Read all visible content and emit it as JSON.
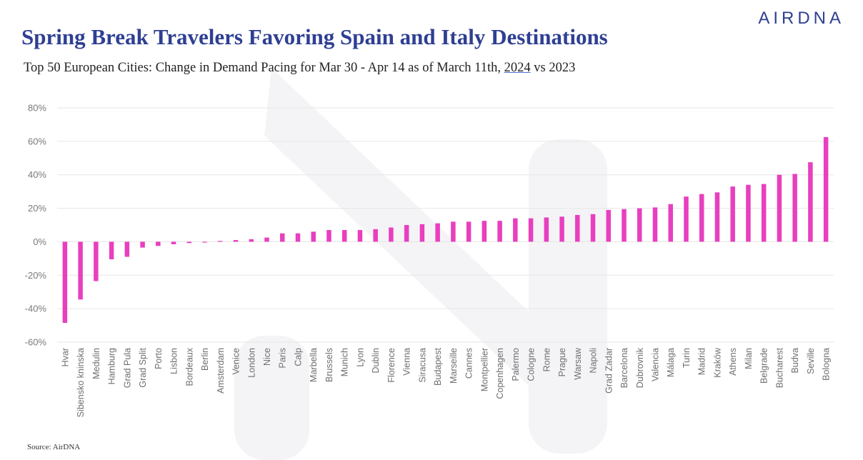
{
  "header": {
    "title": "Spring Break Travelers Favoring Spain and Italy Destinations",
    "subtitle_before": "Top 50 European Cities: Change in Demand Pacing for Mar 30 - Apr 14 as of March 11th, ",
    "subtitle_underlined": "2024",
    "subtitle_after": " vs 2023",
    "logo": "AIRDNA"
  },
  "footer": {
    "source": "Source: AirDNA"
  },
  "colors": {
    "bar": "#e83fbf",
    "title": "#2e3f93",
    "grid": "#e6e6e6"
  },
  "chart_data": {
    "type": "bar",
    "categories": [
      "Hvar",
      "Sibensko kninska",
      "Medulin",
      "Hamburg",
      "Grad Pula",
      "Grad Split",
      "Porto",
      "Lisbon",
      "Bordeaux",
      "Berlin",
      "Amsterdam",
      "Venice",
      "London",
      "Nice",
      "Paris",
      "Calp",
      "Marbella",
      "Brussels",
      "Munich",
      "Lyon",
      "Dublin",
      "Florence",
      "Vienna",
      "Siracusa",
      "Budapest",
      "Marseille",
      "Cannes",
      "Montpellier",
      "Copenhagen",
      "Palermo",
      "Cologne",
      "Rome",
      "Prague",
      "Warsaw",
      "Napoli",
      "Grad Zadar",
      "Barcelona",
      "Dubrovnik",
      "Valencia",
      "Málaga",
      "Turin",
      "Madrid",
      "Kraków",
      "Athens",
      "Milan",
      "Belgrade",
      "Bucharest",
      "Budva",
      "Seville",
      "Bologna"
    ],
    "values": [
      -48.5,
      -34.5,
      -23.5,
      -10.5,
      -9,
      -3.5,
      -2.5,
      -1.5,
      -0.8,
      -0.5,
      0.5,
      1,
      1.5,
      2.5,
      5,
      5,
      6,
      7,
      7,
      7,
      7.5,
      8.5,
      10,
      10.5,
      11,
      12,
      12,
      12.5,
      12.5,
      14,
      14,
      14.5,
      15,
      16,
      16.5,
      19,
      19.5,
      20,
      20.5,
      22.5,
      27,
      28.5,
      29.5,
      33,
      34,
      34.5,
      40,
      40.5,
      47.5,
      62.5
    ],
    "y_ticks": [
      "80%",
      "60%",
      "40%",
      "20%",
      "0%",
      "-20%",
      "-40%",
      "-60%"
    ],
    "ylim": [
      -60,
      80
    ],
    "grid": true,
    "legend": "none"
  }
}
